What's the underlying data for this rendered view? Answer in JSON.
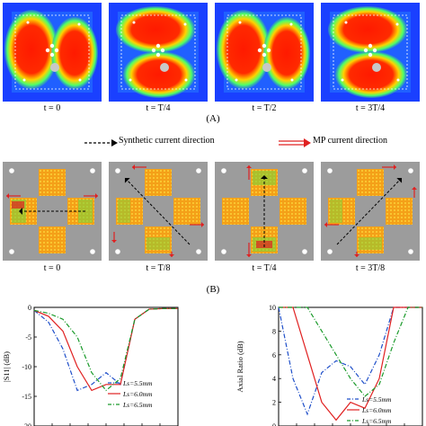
{
  "section_a": {
    "panels": [
      {
        "time_label": "t = 0",
        "orientation": "vertical"
      },
      {
        "time_label": "t = T/4",
        "orientation": "horizontal"
      },
      {
        "time_label": "t = T/2",
        "orientation": "vertical"
      },
      {
        "time_label": "t = 3T/4",
        "orientation": "horizontal"
      }
    ],
    "label": "(A)"
  },
  "legend": {
    "synthetic": "Synthetic current direction",
    "mp": "MP current direction"
  },
  "section_b": {
    "panels": [
      {
        "time_label": "t = 0",
        "arrow": "horizontal"
      },
      {
        "time_label": "t = T/8",
        "arrow": "diag-up-left"
      },
      {
        "time_label": "t = T/4",
        "arrow": "vertical"
      },
      {
        "time_label": "t = 3T/8",
        "arrow": "diag-up-right"
      }
    ],
    "label": "(B)"
  },
  "chart_data": [
    {
      "type": "line",
      "ylabel": "|S11| (dB)",
      "ylim": [
        -20,
        0
      ],
      "yticks": [
        "0",
        "-5",
        "-10",
        "-15",
        "-20"
      ],
      "x_normalized": [
        0.0,
        0.1,
        0.2,
        0.3,
        0.4,
        0.5,
        0.6,
        0.7,
        0.8,
        0.9,
        1.0
      ],
      "series": [
        {
          "name": "Ls=5.5mm",
          "color": "#1f4fc9",
          "dash": "dashdot",
          "values": [
            -0.5,
            -2.5,
            -7,
            -14,
            -13,
            -11,
            -13,
            -2,
            -0.3,
            -0.2,
            -0.2
          ]
        },
        {
          "name": "Ls=6.0mm",
          "color": "#e02020",
          "dash": "solid",
          "values": [
            -0.5,
            -1.5,
            -4,
            -10,
            -14,
            -13,
            -13,
            -2,
            -0.3,
            -0.2,
            -0.2
          ]
        },
        {
          "name": "Ls=6.5mm",
          "color": "#1a9a2a",
          "dash": "dashdot",
          "values": [
            -0.5,
            -1,
            -2,
            -5,
            -11,
            -14,
            -12,
            -2,
            -0.3,
            -0.2,
            -0.2
          ]
        }
      ],
      "legend_position": "bottom-right"
    },
    {
      "type": "line",
      "ylabel": "Axial Ratio (dB)",
      "ylim": [
        0,
        10
      ],
      "yticks": [
        "10",
        "8",
        "6",
        "4",
        "2",
        "0"
      ],
      "x_normalized": [
        0.0,
        0.1,
        0.2,
        0.3,
        0.4,
        0.5,
        0.6,
        0.7,
        0.8,
        0.9,
        1.0
      ],
      "series": [
        {
          "name": "Ls=5.5mm",
          "color": "#1f4fc9",
          "dash": "dashdot",
          "values": [
            10,
            4,
            1,
            4.5,
            5.5,
            5,
            3.5,
            6,
            10,
            10,
            10
          ]
        },
        {
          "name": "Ls=6.0mm",
          "color": "#e02020",
          "dash": "solid",
          "values": [
            10,
            10,
            6,
            2,
            0.5,
            2,
            1.5,
            4,
            10,
            10,
            10
          ]
        },
        {
          "name": "Ls=6.5mm",
          "color": "#1a9a2a",
          "dash": "dashdot",
          "values": [
            10,
            10,
            10,
            8,
            6,
            4,
            2.5,
            3.5,
            7,
            10,
            10
          ]
        }
      ],
      "legend_position": "bottom-right"
    }
  ]
}
